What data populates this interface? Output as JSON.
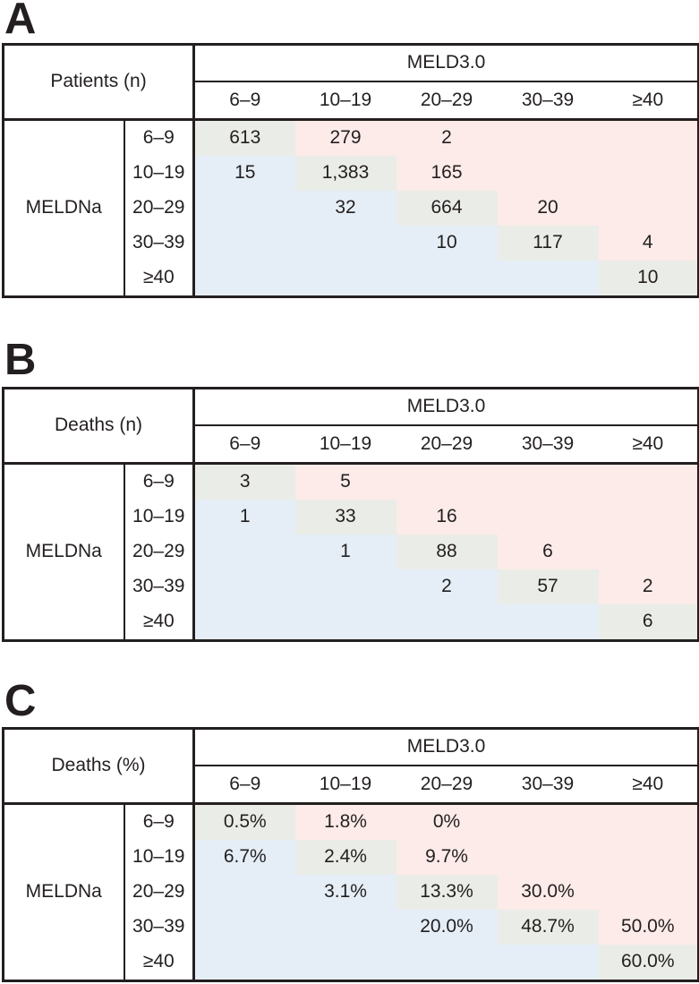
{
  "panels": [
    {
      "label": "A",
      "corner_label": "Patients (n)",
      "col_group_label": "MELD3.0",
      "row_group_label": "MELDNa",
      "col_headers": [
        "6–9",
        "10–19",
        "20–29",
        "30–39",
        "≥40"
      ],
      "row_headers": [
        "6–9",
        "10–19",
        "20–29",
        "30–39",
        "≥40"
      ],
      "rows": [
        [
          "613",
          "279",
          "2",
          "",
          ""
        ],
        [
          "15",
          "1,383",
          "165",
          "",
          ""
        ],
        [
          "",
          "32",
          "664",
          "20",
          ""
        ],
        [
          "",
          "",
          "10",
          "117",
          "4"
        ],
        [
          "",
          "",
          "",
          "",
          "10"
        ]
      ]
    },
    {
      "label": "B",
      "corner_label": "Deaths (n)",
      "col_group_label": "MELD3.0",
      "row_group_label": "MELDNa",
      "col_headers": [
        "6–9",
        "10–19",
        "20–29",
        "30–39",
        "≥40"
      ],
      "row_headers": [
        "6–9",
        "10–19",
        "20–29",
        "30–39",
        "≥40"
      ],
      "rows": [
        [
          "3",
          "5",
          "",
          "",
          ""
        ],
        [
          "1",
          "33",
          "16",
          "",
          ""
        ],
        [
          "",
          "1",
          "88",
          "6",
          ""
        ],
        [
          "",
          "",
          "2",
          "57",
          "2"
        ],
        [
          "",
          "",
          "",
          "",
          "6"
        ]
      ]
    },
    {
      "label": "C",
      "corner_label": "Deaths (%)",
      "col_group_label": "MELD3.0",
      "row_group_label": "MELDNa",
      "col_headers": [
        "6–9",
        "10–19",
        "20–29",
        "30–39",
        "≥40"
      ],
      "row_headers": [
        "6–9",
        "10–19",
        "20–29",
        "30–39",
        "≥40"
      ],
      "rows": [
        [
          "0.5%",
          "1.8%",
          "0%",
          "",
          ""
        ],
        [
          "6.7%",
          "2.4%",
          "9.7%",
          "",
          ""
        ],
        [
          "",
          "3.1%",
          "13.3%",
          "30.0%",
          ""
        ],
        [
          "",
          "",
          "20.0%",
          "48.7%",
          "50.0%"
        ],
        [
          "",
          "",
          "",
          "",
          "60.0%"
        ]
      ]
    }
  ],
  "colors": {
    "diagonal_bg": "#eaece7",
    "above_diagonal_bg": "#fcebe8",
    "below_diagonal_bg": "#e5eef7",
    "border": "#231f20",
    "text": "#231f20"
  }
}
